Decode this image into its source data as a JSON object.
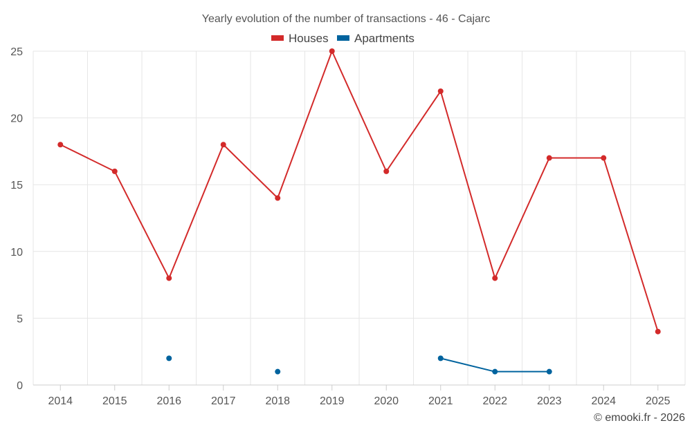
{
  "chart_data": {
    "type": "line",
    "title": "Yearly evolution of the number of transactions - 46 - Cajarc",
    "categories": [
      "2014",
      "2015",
      "2016",
      "2017",
      "2018",
      "2019",
      "2020",
      "2021",
      "2022",
      "2023",
      "2024",
      "2025"
    ],
    "y_ticks": [
      0,
      5,
      10,
      15,
      20,
      25
    ],
    "ylim": [
      0,
      25
    ],
    "grid": true,
    "legend_position": "top-center",
    "series": [
      {
        "name": "Houses",
        "color": "#d32a2a",
        "values": [
          18,
          16,
          8,
          18,
          14,
          25,
          16,
          22,
          8,
          17,
          17,
          4
        ]
      },
      {
        "name": "Apartments",
        "color": "#00639e",
        "values": [
          null,
          null,
          2,
          null,
          1,
          null,
          null,
          2,
          1,
          1,
          null,
          null
        ]
      }
    ],
    "credit": "© emooki.fr - 2026"
  }
}
